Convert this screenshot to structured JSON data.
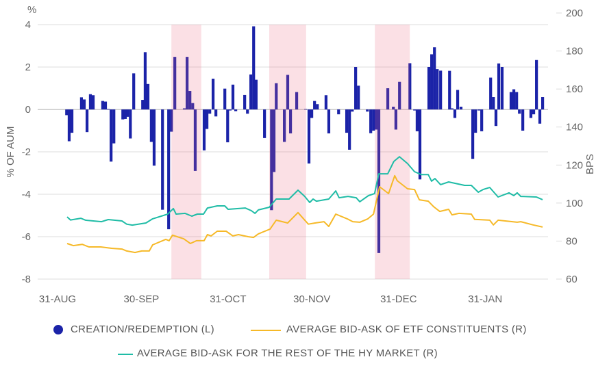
{
  "chart_data": {
    "type": "bar+line",
    "left_axis": {
      "label": "% OF AUM",
      "unit": "%",
      "ylim": [
        -8,
        4
      ],
      "ticks": [
        "4",
        "2",
        "0",
        "-2",
        "-4",
        "-6",
        "-8"
      ]
    },
    "right_axis": {
      "label": "BPS",
      "ylim": [
        60,
        200
      ],
      "ticks": [
        "200",
        "180",
        "160",
        "140",
        "120",
        "100",
        "80",
        "60"
      ]
    },
    "x_axis": {
      "unit": "days since 31-AUG",
      "xlim": [
        0,
        177
      ],
      "ticks": [
        {
          "day": 0,
          "label": "31-AUG"
        },
        {
          "day": 30,
          "label": "30-SEP"
        },
        {
          "day": 61,
          "label": "31-OCT"
        },
        {
          "day": 91,
          "label": "30-NOV"
        },
        {
          "day": 122,
          "label": "31-DEC"
        },
        {
          "day": 153,
          "label": "31-JAN"
        }
      ]
    },
    "shaded_periods": [
      [
        42.2,
        52.9
      ],
      [
        77.2,
        90.4
      ],
      [
        115,
        127.5
      ]
    ],
    "grid": true,
    "series": [
      {
        "name": "CREATION/REDEMPTION (L)",
        "type": "bar",
        "axis": "left",
        "color": "#1b23a8",
        "points": [
          [
            4.7,
            -0.27
          ],
          [
            5.6,
            -1.5
          ],
          [
            6.6,
            -1.1
          ],
          [
            10,
            0.57
          ],
          [
            11,
            0.47
          ],
          [
            12,
            -1.07
          ],
          [
            13.2,
            0.72
          ],
          [
            14.2,
            0.67
          ],
          [
            17.6,
            0.4
          ],
          [
            18.6,
            0.37
          ],
          [
            19.6,
            0.03
          ],
          [
            20.6,
            -2.46
          ],
          [
            21.6,
            -1.6
          ],
          [
            24.8,
            -0.47
          ],
          [
            25.7,
            -0.45
          ],
          [
            26.5,
            -0.35
          ],
          [
            27.5,
            -1.37
          ],
          [
            28.7,
            1.7
          ],
          [
            31.9,
            0.45
          ],
          [
            32.8,
            2.7
          ],
          [
            33.8,
            1.2
          ],
          [
            35,
            -1.53
          ],
          [
            36,
            -2.65
          ],
          [
            39,
            -4.73
          ],
          [
            41.2,
            -5.65
          ],
          [
            42.2,
            -1.05
          ],
          [
            43.4,
            2.48
          ],
          [
            46.8,
            0.05
          ],
          [
            47.8,
            2.48
          ],
          [
            48.8,
            0.87
          ],
          [
            49.8,
            0.3
          ],
          [
            50.7,
            -2.9
          ],
          [
            53.9,
            -1.93
          ],
          [
            54.9,
            -0.92
          ],
          [
            55.9,
            -0.2
          ],
          [
            57.1,
            1.45
          ],
          [
            58.1,
            -0.33
          ],
          [
            61.3,
            0.98
          ],
          [
            62.3,
            -1.55
          ],
          [
            63.2,
            -0.05
          ],
          [
            64.2,
            1.17
          ],
          [
            65.2,
            -0.08
          ],
          [
            68.4,
            0.68
          ],
          [
            69.4,
            -0.2
          ],
          [
            70.6,
            1.65
          ],
          [
            71.6,
            3.92
          ],
          [
            72.5,
            1.4
          ],
          [
            75.5,
            -1.35
          ],
          [
            78,
            -4.75
          ],
          [
            78.9,
            -2.95
          ],
          [
            79.7,
            1.24
          ],
          [
            82.6,
            -1.53
          ],
          [
            83.8,
            1.63
          ],
          [
            84.8,
            -1.13
          ],
          [
            87,
            0.82
          ],
          [
            90.2,
            0.03
          ],
          [
            91.4,
            -2.55
          ],
          [
            92.4,
            -0.4
          ],
          [
            93.4,
            0.4
          ],
          [
            94.4,
            0.25
          ],
          [
            97.5,
            0.67
          ],
          [
            98.5,
            -1.13
          ],
          [
            102,
            -0.23
          ],
          [
            104.9,
            -1.1
          ],
          [
            105.9,
            -1.9
          ],
          [
            106.9,
            -0.1
          ],
          [
            108.1,
            2.0
          ],
          [
            109.1,
            1.12
          ],
          [
            112.3,
            -0.1
          ],
          [
            113.5,
            -1.12
          ],
          [
            114.5,
            -1.0
          ],
          [
            115.4,
            -0.95
          ],
          [
            116.4,
            -6.77
          ],
          [
            119.6,
            1.0
          ],
          [
            121.6,
            0.13
          ],
          [
            122.5,
            -0.95
          ],
          [
            123.8,
            1.3
          ],
          [
            127.5,
            2.18
          ],
          [
            129.2,
            -0.05
          ],
          [
            130.1,
            -1.03
          ],
          [
            131.1,
            -3.3
          ],
          [
            134.3,
            2.0
          ],
          [
            135.3,
            2.6
          ],
          [
            136.3,
            2.93
          ],
          [
            137.3,
            1.9
          ],
          [
            138.5,
            1.83
          ],
          [
            141.7,
            1.82
          ],
          [
            142.6,
            0.05
          ],
          [
            143.6,
            -0.4
          ],
          [
            144.6,
            0.92
          ],
          [
            145.8,
            0.13
          ],
          [
            150,
            -2.33
          ],
          [
            151,
            -1.1
          ],
          [
            152.2,
            -0.05
          ],
          [
            153.2,
            -1.03
          ],
          [
            156.4,
            1.5
          ],
          [
            157.4,
            0.58
          ],
          [
            158.3,
            -0.78
          ],
          [
            159.3,
            2.17
          ],
          [
            160.5,
            2.0
          ],
          [
            163.7,
            0.82
          ],
          [
            164.7,
            0.95
          ],
          [
            165.7,
            0.82
          ],
          [
            166.7,
            -0.2
          ],
          [
            167.9,
            -1.0
          ],
          [
            170.8,
            -0.4
          ],
          [
            171.8,
            -0.23
          ],
          [
            172.8,
            2.33
          ],
          [
            174,
            -0.67
          ],
          [
            175,
            0.58
          ]
        ]
      },
      {
        "name": "AVERAGE BID-ASK OF ETF CONSTITUENTS (R)",
        "type": "line",
        "axis": "right",
        "color": "#f6b928",
        "points": [
          [
            4.9,
            78.7
          ],
          [
            7.1,
            77.6
          ],
          [
            10.3,
            78.3
          ],
          [
            12.7,
            76.9
          ],
          [
            16.9,
            76.9
          ],
          [
            20.8,
            76.2
          ],
          [
            24.5,
            75.8
          ],
          [
            26.2,
            74.8
          ],
          [
            29.2,
            74.0
          ],
          [
            31.6,
            74.8
          ],
          [
            34.3,
            74.8
          ],
          [
            35.5,
            78
          ],
          [
            40.2,
            80.9
          ],
          [
            41.4,
            80.2
          ],
          [
            42.6,
            83.1
          ],
          [
            46.6,
            81.2
          ],
          [
            49,
            78.7
          ],
          [
            51.2,
            80.2
          ],
          [
            53.9,
            80.2
          ],
          [
            55.1,
            83.4
          ],
          [
            56.4,
            82.7
          ],
          [
            58.6,
            85.2
          ],
          [
            61.8,
            85.2
          ],
          [
            64.2,
            82.7
          ],
          [
            66.2,
            83.4
          ],
          [
            69.6,
            82.3
          ],
          [
            71.6,
            81.9
          ],
          [
            73.3,
            83.8
          ],
          [
            77.5,
            86.3
          ],
          [
            79.7,
            91
          ],
          [
            83.8,
            89.5
          ],
          [
            87.5,
            95
          ],
          [
            91.2,
            88.9
          ],
          [
            93.6,
            89.5
          ],
          [
            96.8,
            90.2
          ],
          [
            98.5,
            87.7
          ],
          [
            101,
            94.2
          ],
          [
            105.1,
            91.7
          ],
          [
            107.1,
            90.2
          ],
          [
            109.6,
            89.9
          ],
          [
            112.5,
            91.7
          ],
          [
            114.5,
            94.2
          ],
          [
            116.7,
            108.6
          ],
          [
            119.9,
            105
          ],
          [
            122.1,
            114.4
          ],
          [
            123,
            111.8
          ],
          [
            126.7,
            107.5
          ],
          [
            129.2,
            107.1
          ],
          [
            130.9,
            101.7
          ],
          [
            134.1,
            101
          ],
          [
            136,
            98.1
          ],
          [
            138.2,
            95.6
          ],
          [
            141.4,
            96.7
          ],
          [
            142.6,
            93.8
          ],
          [
            145.1,
            94.6
          ],
          [
            149.5,
            94.2
          ],
          [
            150.7,
            91.4
          ],
          [
            156.1,
            91
          ],
          [
            157.4,
            88.5
          ],
          [
            159.1,
            91
          ],
          [
            165.9,
            89.9
          ],
          [
            167.2,
            90.2
          ],
          [
            171.6,
            88.5
          ],
          [
            175,
            87.4
          ]
        ]
      },
      {
        "name": "AVERAGE BID-ASK FOR THE REST OF THE HY MARKET (R)",
        "type": "line",
        "axis": "right",
        "color": "#1fbca6",
        "points": [
          [
            4.9,
            92.7
          ],
          [
            6.1,
            91.1
          ],
          [
            9.8,
            92
          ],
          [
            11.5,
            91
          ],
          [
            17.2,
            90.2
          ],
          [
            19.6,
            91.3
          ],
          [
            24.5,
            90.6
          ],
          [
            26.2,
            88.9
          ],
          [
            28.2,
            88.4
          ],
          [
            33.1,
            89.5
          ],
          [
            35.5,
            91.7
          ],
          [
            40.9,
            94.2
          ],
          [
            42.9,
            97.1
          ],
          [
            43.9,
            94.2
          ],
          [
            47.1,
            94.6
          ],
          [
            49.5,
            93.1
          ],
          [
            51.5,
            94.2
          ],
          [
            53.7,
            94.2
          ],
          [
            55.1,
            97.4
          ],
          [
            58.6,
            98.5
          ],
          [
            61.3,
            98.5
          ],
          [
            62.5,
            96.7
          ],
          [
            68.6,
            97.4
          ],
          [
            70.8,
            96
          ],
          [
            72.1,
            94.6
          ],
          [
            73.3,
            96.4
          ],
          [
            77.2,
            97.8
          ],
          [
            79.7,
            102.1
          ],
          [
            84.3,
            102.1
          ],
          [
            87.5,
            106.8
          ],
          [
            89.9,
            103.5
          ],
          [
            91.7,
            100.3
          ],
          [
            92.9,
            102.1
          ],
          [
            94.1,
            101
          ],
          [
            98.5,
            102.1
          ],
          [
            101,
            106.4
          ],
          [
            102.2,
            102.8
          ],
          [
            105.4,
            103.5
          ],
          [
            108.3,
            102.8
          ],
          [
            109.6,
            100.7
          ],
          [
            112.7,
            103.9
          ],
          [
            114.9,
            105
          ],
          [
            116.4,
            115.4
          ],
          [
            119.6,
            115.4
          ],
          [
            121.8,
            121.9
          ],
          [
            123.8,
            124.4
          ],
          [
            126.7,
            120.8
          ],
          [
            129.2,
            116.5
          ],
          [
            131.6,
            115
          ],
          [
            134.1,
            115
          ],
          [
            135.3,
            111.5
          ],
          [
            136.5,
            112.9
          ],
          [
            138.5,
            109.7
          ],
          [
            141.4,
            111.1
          ],
          [
            147.1,
            109.3
          ],
          [
            149.5,
            109.3
          ],
          [
            152,
            105.7
          ],
          [
            153.7,
            107.1
          ],
          [
            156.1,
            108.2
          ],
          [
            159.1,
            103.2
          ],
          [
            163,
            105.4
          ],
          [
            164.7,
            103.9
          ],
          [
            165.9,
            105.4
          ],
          [
            167.2,
            103.5
          ],
          [
            172.8,
            103.2
          ],
          [
            175,
            101.8
          ]
        ]
      }
    ],
    "colors": {
      "shade": "rgba(235,100,125,0.2)",
      "grid": "#dcdcdc"
    }
  }
}
